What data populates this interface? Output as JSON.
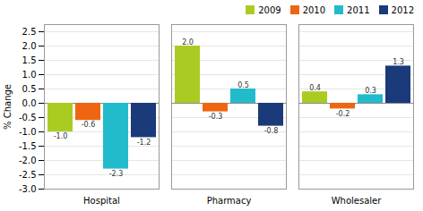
{
  "chart_data": {
    "type": "bar",
    "categories": [
      "Hospital",
      "Pharmacy",
      "Wholesaler"
    ],
    "series": [
      {
        "name": "2009",
        "color": "#aacc22",
        "values": [
          -1.0,
          2.0,
          0.4
        ],
        "value_labels": [
          "-1.0",
          "2.0",
          "0.4"
        ]
      },
      {
        "name": "2010",
        "color": "#ee6611",
        "values": [
          -0.6,
          -0.3,
          -0.2
        ],
        "value_labels": [
          "-0.6",
          "-0.3",
          "-0.2"
        ]
      },
      {
        "name": "2011",
        "color": "#22bbcc",
        "values": [
          -2.3,
          0.5,
          0.3
        ],
        "value_labels": [
          "-2.3",
          "0.5",
          "0.3"
        ]
      },
      {
        "name": "2012",
        "color": "#1a3a7a",
        "values": [
          -1.2,
          -0.8,
          1.3
        ],
        "value_labels": [
          "-1.2",
          "-0.8",
          "1.3"
        ]
      }
    ],
    "ylabel": "% Change",
    "ylim": [
      -3.0,
      2.75
    ],
    "yticks": [
      {
        "value": -3.0,
        "label": "-3.0"
      },
      -2.5,
      {
        "value": -2.0,
        "label": "-2.0"
      },
      -1.5,
      {
        "value": -1.0,
        "label": "-1.0"
      },
      -0.5,
      {
        "value": 0.0,
        "label": "0.0"
      },
      0.5,
      {
        "value": 1.0,
        "label": "1.0"
      },
      1.5,
      {
        "value": 2.0,
        "label": "2.0"
      },
      2.5
    ],
    "grid": true,
    "legend": "upper right",
    "data_labels": true
  }
}
